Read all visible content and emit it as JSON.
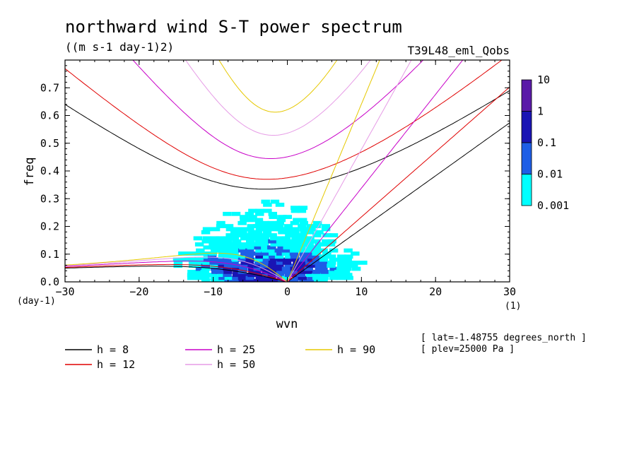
{
  "chart_data": {
    "type": "heatmap",
    "title": "northward wind S-T power spectrum",
    "units": "((m s-1 day-1)2)",
    "run_label": "T39L48_eml_Qobs",
    "xlabel": "wvn",
    "ylabel": "freq",
    "x_unit": "(1)",
    "y_unit": "(day-1)",
    "xlim": [
      -30,
      30
    ],
    "ylim": [
      0,
      0.8
    ],
    "x_ticks": [
      "-30",
      "-20",
      "-10",
      "0",
      "10",
      "20",
      "30"
    ],
    "y_ticks": [
      "0.0",
      "0.1",
      "0.2",
      "0.3",
      "0.4",
      "0.5",
      "0.6",
      "0.7"
    ],
    "colorbar": {
      "levels": [
        "10",
        "1",
        "0.1",
        "0.01",
        "0.001"
      ],
      "colors": [
        "#5a1aa8",
        "#1a14b4",
        "#1e5ee6",
        "#00ffff"
      ]
    },
    "dispersion_curves": [
      {
        "name": "h =  8",
        "h": 8,
        "color": "#000000"
      },
      {
        "name": "h = 12",
        "h": 12,
        "color": "#e00000"
      },
      {
        "name": "h = 25",
        "h": 25,
        "color": "#c800c8"
      },
      {
        "name": "h = 50",
        "h": 50,
        "color": "#e69be6"
      },
      {
        "name": "h = 90",
        "h": 90,
        "color": "#e6c800"
      }
    ],
    "annotations": [
      "[ lat=-1.48755 degrees_north ]",
      "[ plev=25000 Pa ]"
    ]
  }
}
